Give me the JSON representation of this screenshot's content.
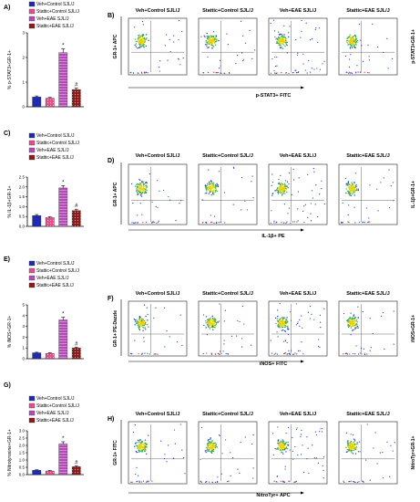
{
  "legend_entries": [
    "Veh+Control SJL/J",
    "Stattic+Control SJL/J",
    "Veh+EAE SJL/J",
    "Stattic+EAE SJL/J"
  ],
  "series_colors": [
    "#1f2bb0",
    "#e0508a",
    "#b44ab8",
    "#8b1a1a"
  ],
  "chart_data": [
    {
      "type": "bar",
      "panel_label": "A)",
      "ylabel": "% p-STAT3+GR-1+",
      "categories": [
        "Veh+Control SJL/J",
        "Stattic+Control SJL/J",
        "Veh+EAE SJL/J",
        "Stattic+EAE SJL/J"
      ],
      "values": [
        0.4,
        0.35,
        2.2,
        0.7
      ],
      "errors": [
        0.04,
        0.03,
        0.15,
        0.06
      ],
      "yticks": [
        "0",
        "1",
        "2",
        "3"
      ],
      "ylim": [
        0,
        3
      ],
      "annotations": [
        {
          "category": "Veh+EAE SJL/J",
          "text": "*"
        },
        {
          "category": "Stattic+EAE SJL/J",
          "text": "#"
        }
      ],
      "legend_position": "top-left"
    },
    {
      "type": "bar",
      "panel_label": "C)",
      "ylabel": "% IL-1β+GR-1+",
      "categories": [
        "Veh+Control SJL/J",
        "Stattic+Control SJL/J",
        "Veh+EAE SJL/J",
        "Stattic+EAE SJL/J"
      ],
      "values": [
        0.55,
        0.45,
        1.95,
        0.8
      ],
      "errors": [
        0.05,
        0.04,
        0.12,
        0.07
      ],
      "yticks": [
        "0.0",
        "0.5",
        "1.0",
        "1.5",
        "2.0",
        "2.5"
      ],
      "ylim": [
        0,
        2.5
      ],
      "annotations": [
        {
          "category": "Veh+EAE SJL/J",
          "text": "*"
        },
        {
          "category": "Stattic+EAE SJL/J",
          "text": "#"
        }
      ],
      "legend_position": "top-left"
    },
    {
      "type": "bar",
      "panel_label": "E)",
      "ylabel": "% iNOS+GR-1+",
      "categories": [
        "Veh+Control SJL/J",
        "Stattic+Control SJL/J",
        "Veh+EAE SJL/J",
        "Stattic+EAE SJL/J"
      ],
      "values": [
        0.55,
        0.5,
        3.6,
        1.0
      ],
      "errors": [
        0.05,
        0.05,
        0.25,
        0.08
      ],
      "yticks": [
        "0",
        "1",
        "2",
        "3",
        "4",
        "5"
      ],
      "ylim": [
        0,
        5
      ],
      "annotations": [
        {
          "category": "Veh+EAE SJL/J",
          "text": "*"
        },
        {
          "category": "Stattic+EAE SJL/J",
          "text": "#"
        }
      ],
      "legend_position": "top-left"
    },
    {
      "type": "bar",
      "panel_label": "G)",
      "ylabel": "% Nitrotyrosine+GR-1+",
      "categories": [
        "Veh+Control SJL/J",
        "Stattic+Control SJL/J",
        "Veh+EAE SJL/J",
        "Stattic+EAE SJL/J"
      ],
      "values": [
        0.3,
        0.25,
        2.1,
        0.55
      ],
      "errors": [
        0.03,
        0.03,
        0.15,
        0.05
      ],
      "yticks": [
        "0.0",
        "0.5",
        "1.0",
        "1.5",
        "2.0",
        "2.5",
        "3.0"
      ],
      "ylim": [
        0,
        3
      ],
      "annotations": [
        {
          "category": "Veh+EAE SJL/J",
          "text": "*"
        },
        {
          "category": "Stattic+EAE SJL/J",
          "text": "#"
        }
      ],
      "legend_position": "top-left"
    }
  ],
  "flow_panels": [
    {
      "panel_label": "B)",
      "titles": [
        "Veh+Control SJL/J",
        "Stattic+Control SJL/J",
        "Veh+EAE SJL/J",
        "Stattic+EAE SJL/J"
      ],
      "y_axis_label": "GR-1+ APC",
      "x_axis_label": "p-STAT3+ FITC",
      "side_label": "p-STAT3+GR-1+"
    },
    {
      "panel_label": "D)",
      "titles": [
        "Veh+Control SJL/J",
        "Stattic+Control SJL/J",
        "Veh+EAE SJL/J",
        "Stattic+EAE SJL/J"
      ],
      "y_axis_label": "GR-1+ APC",
      "x_axis_label": "IL-1β+ PE",
      "side_label": "IL-1β+GR-1+"
    },
    {
      "panel_label": "F)",
      "titles": [
        "Veh+Control SJL/J",
        "Stattic+Control SJL/J",
        "Veh+EAE SJL/J",
        "Stattic+EAE SJL/J"
      ],
      "y_axis_label": "GR-1+ PE-Dazzle",
      "x_axis_label": "iNOS+ FITC",
      "side_label": "iNOS+GR-1+"
    },
    {
      "panel_label": "H)",
      "titles": [
        "Veh+Control SJL/J",
        "Stattic+Control SJL/J",
        "Veh+EAE SJL/J",
        "Stattic+EAE SJL/J"
      ],
      "y_axis_label": "GR-1+ FITC",
      "x_axis_label": "NitroTyr+ APC",
      "side_label": "NitroTyr+GR-1+"
    }
  ]
}
